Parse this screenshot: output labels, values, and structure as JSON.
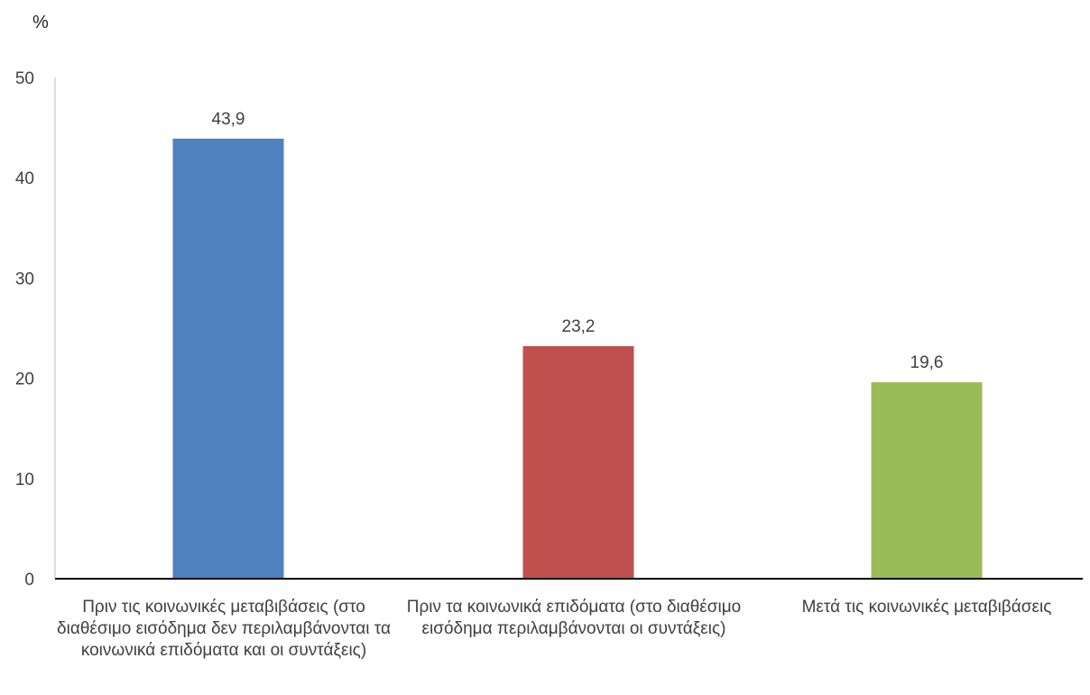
{
  "chart_data": {
    "type": "bar",
    "ylabel": "%",
    "ylim": [
      0,
      50
    ],
    "yticks": [
      0,
      10,
      20,
      30,
      40,
      50
    ],
    "categories": [
      "Πριν τις κοινωνικές μεταβιβάσεις (στο διαθέσιμο εισόδημα δεν περιλαμβάνονται τα κοινωνικά επιδόματα και οι συντάξεις)",
      "Πριν τα κοινωνικά επιδόματα (στο διαθέσιμο εισόδημα περιλαμβάνονται οι συντάξεις)",
      "Μετά τις κοινωνικές μεταβιβάσεις"
    ],
    "values": [
      43.9,
      23.2,
      19.6
    ],
    "value_labels": [
      "43,9",
      "23,2",
      "19,6"
    ],
    "colors": [
      "#4f81bd",
      "#c0504d",
      "#9bbb59"
    ],
    "grid": false,
    "legend": "none"
  }
}
